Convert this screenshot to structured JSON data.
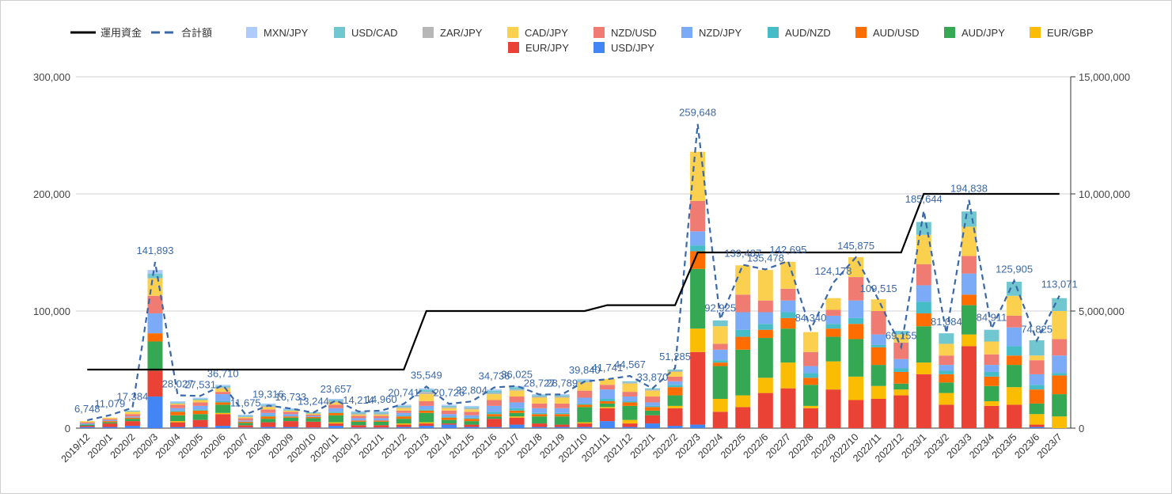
{
  "chart_data": {
    "type": "bar",
    "stacked": true,
    "categories": [
      "2019/12",
      "2020/1",
      "2020/2",
      "2020/3",
      "2020/4",
      "2020/5",
      "2020/6",
      "2020/7",
      "2020/8",
      "2020/9",
      "2020/10",
      "2020/11",
      "2020/12",
      "2021/1",
      "2021/2",
      "2021/3",
      "2021/4",
      "2021/5",
      "2021/6",
      "2021/7",
      "2021/8",
      "2021/9",
      "2021/10",
      "2021/11",
      "2021/12",
      "2022/1",
      "2022/2",
      "2022/3",
      "2022/4",
      "2022/5",
      "2022/6",
      "2022/7",
      "2022/8",
      "2022/9",
      "2022/10",
      "2022/11",
      "2022/12",
      "2023/1",
      "2023/2",
      "2023/3",
      "2023/4",
      "2023/5",
      "2023/6",
      "2023/7"
    ],
    "series": [
      {
        "name": "USD/JPY",
        "color": "#4285f4",
        "values": [
          1000,
          1000,
          2000,
          27000,
          1000,
          1000,
          2000,
          500,
          1000,
          1000,
          500,
          2000,
          500,
          500,
          1000,
          2000,
          3000,
          1000,
          1000,
          3000,
          1000,
          1000,
          1000,
          6000,
          1000,
          4000,
          2000,
          3000,
          0,
          0,
          0,
          0,
          0,
          0,
          0,
          0,
          0,
          0,
          0,
          0,
          0,
          0,
          1000,
          0
        ]
      },
      {
        "name": "EUR/JPY",
        "color": "#ea4335",
        "values": [
          1000,
          3000,
          4000,
          22000,
          4000,
          6000,
          10000,
          2000,
          4000,
          5000,
          5000,
          2000,
          2000,
          2000,
          2000,
          2000,
          1000,
          2000,
          7000,
          6000,
          3000,
          2000,
          3000,
          11000,
          3000,
          7000,
          15000,
          62000,
          14000,
          18000,
          30000,
          34000,
          17000,
          33000,
          24000,
          25000,
          28000,
          46000,
          20000,
          70000,
          19000,
          20000,
          2000,
          0
        ]
      },
      {
        "name": "EUR/GBP",
        "color": "#fbbc04",
        "values": [
          0,
          0,
          0,
          0,
          1000,
          0,
          1000,
          0,
          0,
          0,
          0,
          1000,
          0,
          0,
          1000,
          1000,
          0,
          0,
          0,
          1000,
          0,
          0,
          1000,
          1000,
          3000,
          0,
          2000,
          20000,
          11000,
          10000,
          13000,
          22000,
          2000,
          24000,
          20000,
          11000,
          5000,
          10000,
          10000,
          10000,
          4000,
          15000,
          9000,
          10000
        ]
      },
      {
        "name": "AUD/JPY",
        "color": "#34a853",
        "values": [
          1000,
          1000,
          2000,
          25000,
          5000,
          5000,
          7000,
          2000,
          3000,
          3000,
          3000,
          6000,
          3000,
          3000,
          4000,
          8000,
          3000,
          3000,
          2000,
          3000,
          6000,
          7000,
          13000,
          3000,
          12000,
          4000,
          9000,
          51000,
          28000,
          39000,
          34000,
          29000,
          18000,
          21000,
          32000,
          18000,
          5000,
          31000,
          9000,
          25000,
          13000,
          19000,
          9000,
          19000
        ]
      },
      {
        "name": "AUD/USD",
        "color": "#ff6d01",
        "values": [
          0,
          1000,
          1000,
          7000,
          3000,
          3000,
          2000,
          1000,
          2000,
          1000,
          1000,
          2000,
          1000,
          1000,
          2000,
          2000,
          2000,
          2000,
          2000,
          2000,
          2000,
          2000,
          2000,
          2000,
          3000,
          3000,
          7000,
          15000,
          3000,
          11000,
          7000,
          9000,
          6000,
          7000,
          13000,
          15000,
          10000,
          11000,
          7000,
          9000,
          8000,
          8000,
          12000,
          16000
        ]
      },
      {
        "name": "AUD/NZD",
        "color": "#46bdc6",
        "values": [
          0,
          0,
          0,
          0,
          1000,
          1000,
          1000,
          0,
          1000,
          0,
          0,
          1000,
          0,
          0,
          1000,
          1000,
          1000,
          1000,
          2000,
          2000,
          1000,
          1000,
          1000,
          2000,
          1000,
          1000,
          2000,
          5000,
          2000,
          6000,
          5000,
          5000,
          4000,
          4000,
          5000,
          2000,
          3000,
          10000,
          3000,
          0,
          4000,
          8000,
          4000,
          2000
        ]
      },
      {
        "name": "NZD/JPY",
        "color": "#7baaf7",
        "values": [
          1000,
          1000,
          1000,
          17000,
          2000,
          3000,
          6000,
          1000,
          2000,
          2000,
          1000,
          3000,
          2000,
          2000,
          2000,
          3000,
          2000,
          2000,
          5000,
          5000,
          4000,
          4000,
          5000,
          8000,
          4000,
          3000,
          3000,
          12000,
          9000,
          15000,
          10000,
          10000,
          6000,
          7000,
          15000,
          9000,
          8000,
          14000,
          5000,
          18000,
          6000,
          16000,
          9000,
          15000
        ]
      },
      {
        "name": "NZD/USD",
        "color": "#f07b72",
        "values": [
          1000,
          1000,
          2000,
          15000,
          3000,
          3000,
          2000,
          2000,
          3000,
          2000,
          1000,
          3000,
          2000,
          2000,
          2000,
          4000,
          3000,
          3000,
          5000,
          5000,
          4000,
          4000,
          6000,
          4000,
          4000,
          5000,
          4000,
          26000,
          5000,
          15000,
          10000,
          10000,
          12000,
          5000,
          20000,
          20000,
          14000,
          18000,
          8000,
          15000,
          9000,
          10000,
          12000,
          14000
        ]
      },
      {
        "name": "CAD/JPY",
        "color": "#fcd04f",
        "values": [
          1000,
          1000,
          2000,
          15000,
          1000,
          2000,
          3000,
          1000,
          2000,
          1000,
          1000,
          2000,
          1000,
          1000,
          2000,
          6000,
          2000,
          2000,
          5000,
          5000,
          5000,
          5000,
          7000,
          5000,
          7000,
          5000,
          4000,
          42000,
          15000,
          25000,
          26000,
          23000,
          17000,
          10000,
          17000,
          10000,
          7000,
          25000,
          10000,
          25000,
          11000,
          17000,
          4000,
          24000
        ]
      },
      {
        "name": "ZAR/JPY",
        "color": "#b7b7b7",
        "values": [
          0,
          0,
          0,
          0,
          0,
          0,
          1000,
          0,
          1000,
          0,
          0,
          1000,
          1000,
          1000,
          1000,
          2000,
          1000,
          1000,
          1000,
          1000,
          1000,
          1000,
          1000,
          0,
          1000,
          1000,
          1000,
          0,
          0,
          0,
          0,
          0,
          0,
          0,
          0,
          0,
          0,
          0,
          0,
          0,
          0,
          0,
          0,
          0
        ]
      },
      {
        "name": "USD/CAD",
        "color": "#71c7d0",
        "values": [
          0,
          0,
          1000,
          4000,
          1000,
          1000,
          1000,
          1000,
          1000,
          1000,
          1000,
          1000,
          1000,
          1000,
          1000,
          2000,
          1000,
          1000,
          2000,
          2000,
          1000,
          1000,
          1000,
          0,
          1000,
          1000,
          1000,
          0,
          5000,
          0,
          0,
          0,
          0,
          0,
          0,
          0,
          3000,
          11000,
          9000,
          13000,
          10000,
          12000,
          13000,
          11000
        ]
      },
      {
        "name": "MXN/JPY",
        "color": "#aecbfa",
        "values": [
          0,
          0,
          0,
          3000,
          1000,
          1000,
          1000,
          1000,
          1000,
          1000,
          0,
          1000,
          1000,
          1000,
          1000,
          1000,
          1000,
          1000,
          1000,
          1000,
          1000,
          1000,
          1000,
          0,
          0,
          0,
          0,
          0,
          0,
          0,
          0,
          0,
          0,
          0,
          0,
          0,
          0,
          0,
          0,
          0,
          0,
          0,
          0,
          0
        ]
      }
    ],
    "line_series": [
      {
        "name": "合計額",
        "axis": "left",
        "style": "dashed",
        "color": "#3b68a8",
        "values": [
          6748,
          11079,
          17384,
          141893,
          28027,
          27531,
          36710,
          11675,
          19316,
          16733,
          13244,
          23657,
          14214,
          14960,
          20741,
          35549,
          20726,
          22804,
          34736,
          36025,
          28727,
          28789,
          39840,
          41741,
          44567,
          33870,
          51285,
          259648,
          92925,
          139487,
          135478,
          142695,
          84340,
          124178,
          145875,
          109515,
          69155,
          185644,
          81084,
          194838,
          84911,
          125905,
          74825,
          113071
        ],
        "labels": [
          "6,748",
          "11,079",
          "17,384",
          "141,893",
          "28,027",
          "27,531",
          "36,710",
          "11,675",
          "19,316",
          "16,733",
          "13,244",
          "23,657",
          "14,214",
          "14,960",
          "20,741",
          "35,549",
          "20,726",
          "22,804",
          "34,736",
          "36,025",
          "28,727",
          "28,789",
          "39,840",
          "41,741",
          "44,567",
          "33,870",
          "51,285",
          "259,648",
          "92,925",
          "139,487",
          "135,478",
          "142,695",
          "84,340",
          "124,178",
          "145,875",
          "109,515",
          "69,155",
          "185,644",
          "81,084",
          "194,838",
          "84,911",
          "125,905",
          "74,825",
          "113,071"
        ]
      },
      {
        "name": "運用資金",
        "axis": "right",
        "style": "solid",
        "color": "#000000",
        "values": [
          2500000,
          2500000,
          2500000,
          2500000,
          2500000,
          2500000,
          2500000,
          2500000,
          2500000,
          2500000,
          2500000,
          2500000,
          2500000,
          2500000,
          2500000,
          5000000,
          5000000,
          5000000,
          5000000,
          5000000,
          5000000,
          5000000,
          5000000,
          5250000,
          5250000,
          5250000,
          5250000,
          7500000,
          7500000,
          7500000,
          7500000,
          7500000,
          7500000,
          7500000,
          7500000,
          7500000,
          7500000,
          10000000,
          10000000,
          10000000,
          10000000,
          10000000,
          10000000,
          10000000
        ]
      }
    ],
    "y_left": {
      "min": 0,
      "max": 300000,
      "ticks": [
        0,
        100000,
        200000,
        300000
      ],
      "tick_labels": [
        "0",
        "100,000",
        "200,000",
        "300,000"
      ]
    },
    "y_right": {
      "min": 0,
      "max": 15000000,
      "ticks": [
        0,
        5000000,
        10000000,
        15000000
      ],
      "tick_labels": [
        "0",
        "5,000,000",
        "10,000,000",
        "15,000,000"
      ]
    },
    "grid": true,
    "legend_position": "top",
    "legend_order": [
      "運用資金",
      "合計額",
      "MXN/JPY",
      "USD/CAD",
      "ZAR/JPY",
      "CAD/JPY",
      "NZD/USD",
      "NZD/JPY",
      "AUD/NZD",
      "AUD/USD",
      "AUD/JPY",
      "EUR/GBP",
      "EUR/JPY",
      "USD/JPY"
    ]
  }
}
